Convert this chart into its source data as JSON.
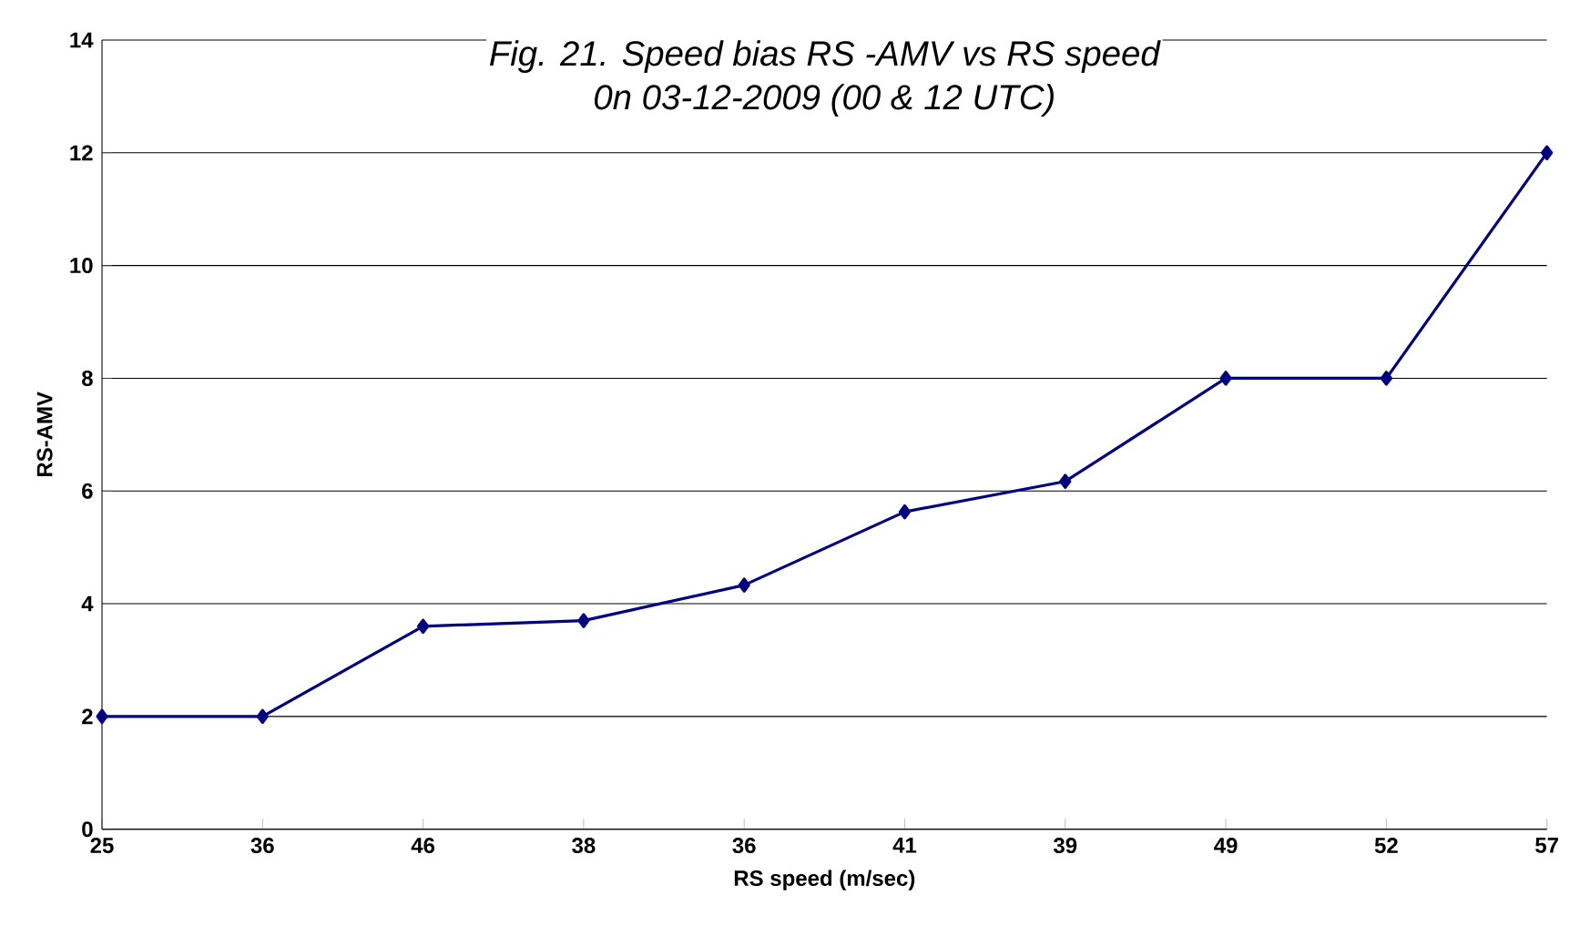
{
  "chart_data": {
    "type": "line",
    "title": "Fig. 21. Speed bias RS -AMV vs RS speed",
    "subtitle": "0n 03-12-2009 (00 & 12 UTC)",
    "xlabel": "RS speed (m/sec)",
    "ylabel": "RS-AMV",
    "categories": [
      "25",
      "36",
      "46",
      "38",
      "36",
      "41",
      "39",
      "49",
      "52",
      "57"
    ],
    "series": [
      {
        "color": "#000080",
        "values": [
          2,
          2,
          3.6,
          3.7,
          4.33,
          5.63,
          6.17,
          8,
          8,
          12
        ]
      }
    ],
    "ylim": [
      0,
      14
    ],
    "yticks": [
      0,
      2,
      4,
      6,
      8,
      10,
      12,
      14
    ],
    "grid": "y",
    "marker": "diamond",
    "line_style": "solid"
  }
}
